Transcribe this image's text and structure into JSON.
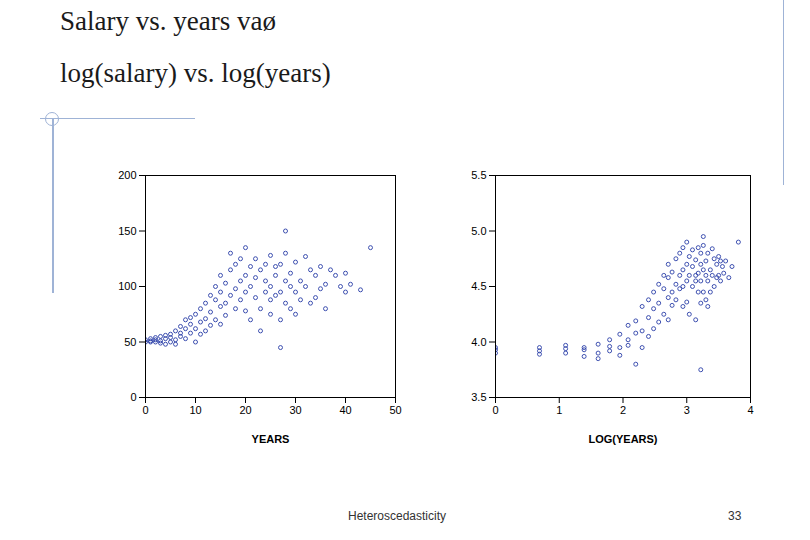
{
  "slide": {
    "title": [
      "Salary vs. years vaø",
      "log(salary) vs. log(years)"
    ],
    "footer": "Heteroscedasticity",
    "page": 33
  },
  "chart_data": [
    {
      "type": "scatter",
      "x_label": "YEARS",
      "color": "#2b3fa8",
      "marker": "circle",
      "xlim": [
        0,
        50
      ],
      "xticks": [
        0,
        10,
        20,
        30,
        40,
        50
      ],
      "ylim": [
        0,
        200
      ],
      "yticks": [
        0,
        50,
        100,
        150,
        200
      ],
      "x": [
        0,
        0,
        1,
        1,
        1,
        2,
        2,
        2,
        3,
        3,
        3,
        4,
        4,
        4,
        5,
        5,
        5,
        6,
        6,
        6,
        7,
        7,
        7,
        8,
        8,
        8,
        9,
        9,
        9,
        10,
        10,
        10,
        11,
        11,
        11,
        12,
        12,
        12,
        13,
        13,
        13,
        14,
        14,
        14,
        15,
        15,
        15,
        15,
        16,
        16,
        16,
        17,
        17,
        17,
        18,
        18,
        18,
        19,
        19,
        19,
        20,
        20,
        20,
        20,
        21,
        21,
        21,
        22,
        22,
        22,
        23,
        23,
        23,
        24,
        24,
        24,
        25,
        25,
        25,
        25,
        26,
        26,
        26,
        27,
        27,
        27,
        27,
        28,
        28,
        28,
        28,
        29,
        29,
        29,
        30,
        30,
        30,
        31,
        31,
        32,
        32,
        33,
        33,
        34,
        34,
        35,
        35,
        36,
        36,
        37,
        38,
        39,
        40,
        40,
        41,
        43,
        45
      ],
      "values": [
        50,
        52,
        51,
        53,
        50,
        52,
        54,
        50,
        51,
        55,
        49,
        53,
        48,
        56,
        50,
        57,
        54,
        60,
        52,
        48,
        64,
        55,
        58,
        70,
        62,
        53,
        66,
        72,
        58,
        75,
        62,
        50,
        80,
        68,
        57,
        71,
        85,
        60,
        77,
        92,
        65,
        88,
        70,
        100,
        82,
        95,
        110,
        66,
        103,
        85,
        74,
        115,
        92,
        130,
        98,
        80,
        120,
        105,
        88,
        125,
        110,
        95,
        78,
        135,
        100,
        118,
        70,
        108,
        90,
        125,
        115,
        80,
        60,
        120,
        95,
        105,
        100,
        88,
        128,
        75,
        110,
        92,
        118,
        70,
        95,
        120,
        45,
        105,
        150,
        85,
        130,
        112,
        80,
        100,
        122,
        95,
        75,
        105,
        88,
        127,
        100,
        115,
        85,
        90,
        110,
        118,
        98,
        80,
        102,
        115,
        110,
        100,
        112,
        95,
        102,
        97,
        135
      ]
    },
    {
      "type": "scatter",
      "x_label": "LOG(YEARS)",
      "color": "#2b3fa8",
      "marker": "circle",
      "xlim": [
        0,
        4
      ],
      "xticks": [
        0,
        1,
        2,
        3,
        4
      ],
      "ylim": [
        3.5,
        5.5
      ],
      "yticks": [
        3.5,
        {
          "value": 4,
          "label": "4.0"
        },
        4.5,
        {
          "value": 5,
          "label": "5.0"
        },
        5.5
      ],
      "x": [
        0,
        0,
        0,
        0.69,
        0.69,
        0.69,
        1.1,
        1.1,
        1.1,
        1.39,
        1.39,
        1.39,
        1.61,
        1.61,
        1.61,
        1.79,
        1.79,
        1.79,
        1.95,
        1.95,
        1.95,
        2.08,
        2.08,
        2.08,
        2.2,
        2.2,
        2.2,
        2.3,
        2.3,
        2.3,
        2.4,
        2.4,
        2.4,
        2.48,
        2.48,
        2.48,
        2.56,
        2.56,
        2.56,
        2.64,
        2.64,
        2.64,
        2.71,
        2.71,
        2.71,
        2.71,
        2.77,
        2.77,
        2.77,
        2.83,
        2.83,
        2.83,
        2.89,
        2.89,
        2.89,
        2.94,
        2.94,
        2.94,
        2.94,
        3,
        3,
        3,
        3,
        3.04,
        3.04,
        3.04,
        3.09,
        3.09,
        3.09,
        3.14,
        3.14,
        3.14,
        3.14,
        3.18,
        3.18,
        3.18,
        3.22,
        3.22,
        3.22,
        3.22,
        3.22,
        3.26,
        3.26,
        3.26,
        3.26,
        3.3,
        3.3,
        3.3,
        3.33,
        3.33,
        3.33,
        3.37,
        3.37,
        3.4,
        3.4,
        3.43,
        3.43,
        3.47,
        3.47,
        3.5,
        3.5,
        3.53,
        3.53,
        3.56,
        3.58,
        3.61,
        3.66,
        3.71,
        3.81
      ],
      "values": [
        3.9,
        3.93,
        3.95,
        3.92,
        3.95,
        3.89,
        3.94,
        3.9,
        3.97,
        3.93,
        3.87,
        3.95,
        3.98,
        3.9,
        3.85,
        4.02,
        3.92,
        3.96,
        4.07,
        3.95,
        3.88,
        4.15,
        4.02,
        3.97,
        4.19,
        4.08,
        3.8,
        4.32,
        4.1,
        3.95,
        4.38,
        4.22,
        4.05,
        4.3,
        4.45,
        4.12,
        4.35,
        4.52,
        4.18,
        4.48,
        4.25,
        4.6,
        4.4,
        4.58,
        4.7,
        4.2,
        4.63,
        4.45,
        4.33,
        4.75,
        4.52,
        4.38,
        4.6,
        4.8,
        4.48,
        4.65,
        4.5,
        4.85,
        4.32,
        4.7,
        4.55,
        4.36,
        4.9,
        4.6,
        4.77,
        4.25,
        4.68,
        4.5,
        4.83,
        4.74,
        4.55,
        4.6,
        4.2,
        4.62,
        4.45,
        4.85,
        4.7,
        4.55,
        4.35,
        3.75,
        4.8,
        4.65,
        4.95,
        4.45,
        4.87,
        4.73,
        4.38,
        4.6,
        4.8,
        4.55,
        4.32,
        4.65,
        4.45,
        4.84,
        4.6,
        4.75,
        4.5,
        4.58,
        4.7,
        4.77,
        4.6,
        4.73,
        4.55,
        4.68,
        4.62,
        4.73,
        4.58,
        4.68,
        4.9
      ]
    }
  ]
}
